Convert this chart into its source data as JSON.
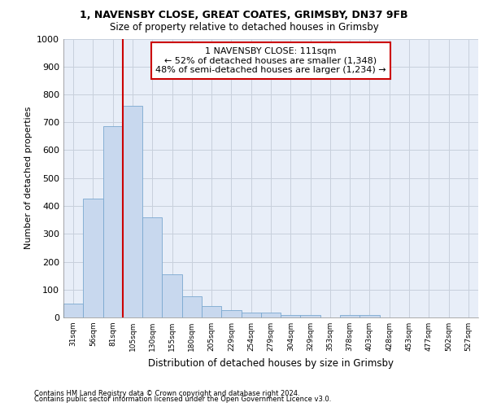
{
  "title1": "1, NAVENSBY CLOSE, GREAT COATES, GRIMSBY, DN37 9FB",
  "title2": "Size of property relative to detached houses in Grimsby",
  "xlabel": "Distribution of detached houses by size in Grimsby",
  "ylabel": "Number of detached properties",
  "footnote1": "Contains HM Land Registry data © Crown copyright and database right 2024.",
  "footnote2": "Contains public sector information licensed under the Open Government Licence v3.0.",
  "annotation_line1": "1 NAVENSBY CLOSE: 111sqm",
  "annotation_line2": "← 52% of detached houses are smaller (1,348)",
  "annotation_line3": "48% of semi-detached houses are larger (1,234) →",
  "bar_labels": [
    "31sqm",
    "56sqm",
    "81sqm",
    "105sqm",
    "130sqm",
    "155sqm",
    "180sqm",
    "205sqm",
    "229sqm",
    "254sqm",
    "279sqm",
    "304sqm",
    "329sqm",
    "353sqm",
    "378sqm",
    "403sqm",
    "428sqm",
    "453sqm",
    "477sqm",
    "502sqm",
    "527sqm"
  ],
  "bar_values": [
    50,
    425,
    685,
    760,
    360,
    155,
    75,
    40,
    27,
    18,
    18,
    10,
    10,
    0,
    10,
    10,
    0,
    0,
    0,
    0,
    0
  ],
  "bar_color": "#c8d8ee",
  "bar_edge_color": "#7aa8d0",
  "ylim": [
    0,
    1000
  ],
  "yticks": [
    0,
    100,
    200,
    300,
    400,
    500,
    600,
    700,
    800,
    900,
    1000
  ],
  "grid_color": "#c8d0dc",
  "background_color": "#e8eef8",
  "annotation_box_color": "#ffffff",
  "annotation_box_edge": "#cc0000",
  "red_line_color": "#cc0000",
  "red_line_bar_index": 3
}
